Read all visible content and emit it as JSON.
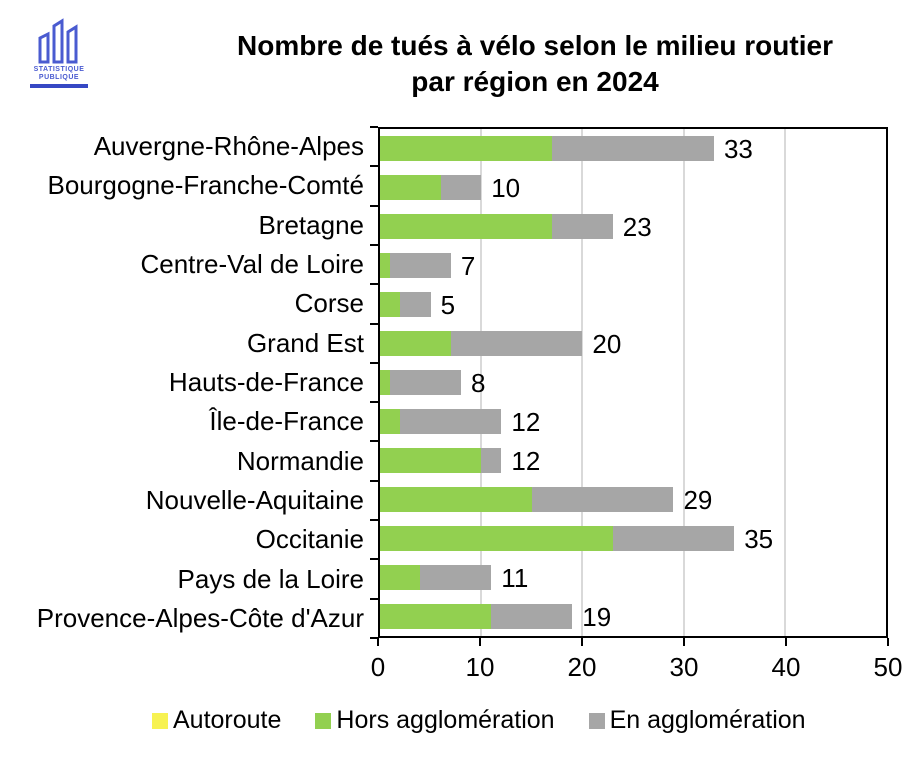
{
  "logo": {
    "line1": "STATISTIQUE",
    "line2": "PUBLIQUE"
  },
  "title": {
    "line1": "Nombre de tués à vélo selon le milieu routier",
    "line2": "par région en 2024"
  },
  "chart_data": {
    "type": "bar",
    "orientation": "horizontal",
    "stacked": true,
    "title": "Nombre de tués à vélo selon le milieu routier par région en 2024",
    "categories": [
      "Auvergne-Rhône-Alpes",
      "Bourgogne-Franche-Comté",
      "Bretagne",
      "Centre-Val de Loire",
      "Corse",
      "Grand Est",
      "Hauts-de-France",
      "Île-de-France",
      "Normandie",
      "Nouvelle-Aquitaine",
      "Occitanie",
      "Pays de la Loire",
      "Provence-Alpes-Côte d'Azur"
    ],
    "series": [
      {
        "name": "Autoroute",
        "key": "autoroute",
        "color": "#f7f251",
        "values": [
          0,
          0,
          0,
          0,
          0,
          0,
          0,
          0,
          0,
          0,
          0,
          0,
          0
        ]
      },
      {
        "name": "Hors agglomération",
        "key": "hors-agglomeration",
        "color": "#92d050",
        "values": [
          17,
          6,
          17,
          1,
          2,
          7,
          1,
          2,
          10,
          15,
          23,
          4,
          11
        ]
      },
      {
        "name": "En agglomération",
        "key": "en-agglomeration",
        "color": "#a6a6a6",
        "values": [
          16,
          4,
          6,
          6,
          3,
          13,
          7,
          10,
          2,
          14,
          12,
          7,
          8
        ]
      }
    ],
    "totals": [
      33,
      10,
      23,
      7,
      5,
      20,
      8,
      12,
      12,
      29,
      35,
      11,
      19
    ],
    "xlim": [
      0,
      50
    ],
    "xticks": [
      0,
      10,
      20,
      30,
      40,
      50
    ],
    "grid": true,
    "legend_position": "bottom"
  },
  "colors": {
    "axis": "#000000",
    "gridline": "#d9d9d9",
    "logo_blue": "#4a5bd0"
  }
}
